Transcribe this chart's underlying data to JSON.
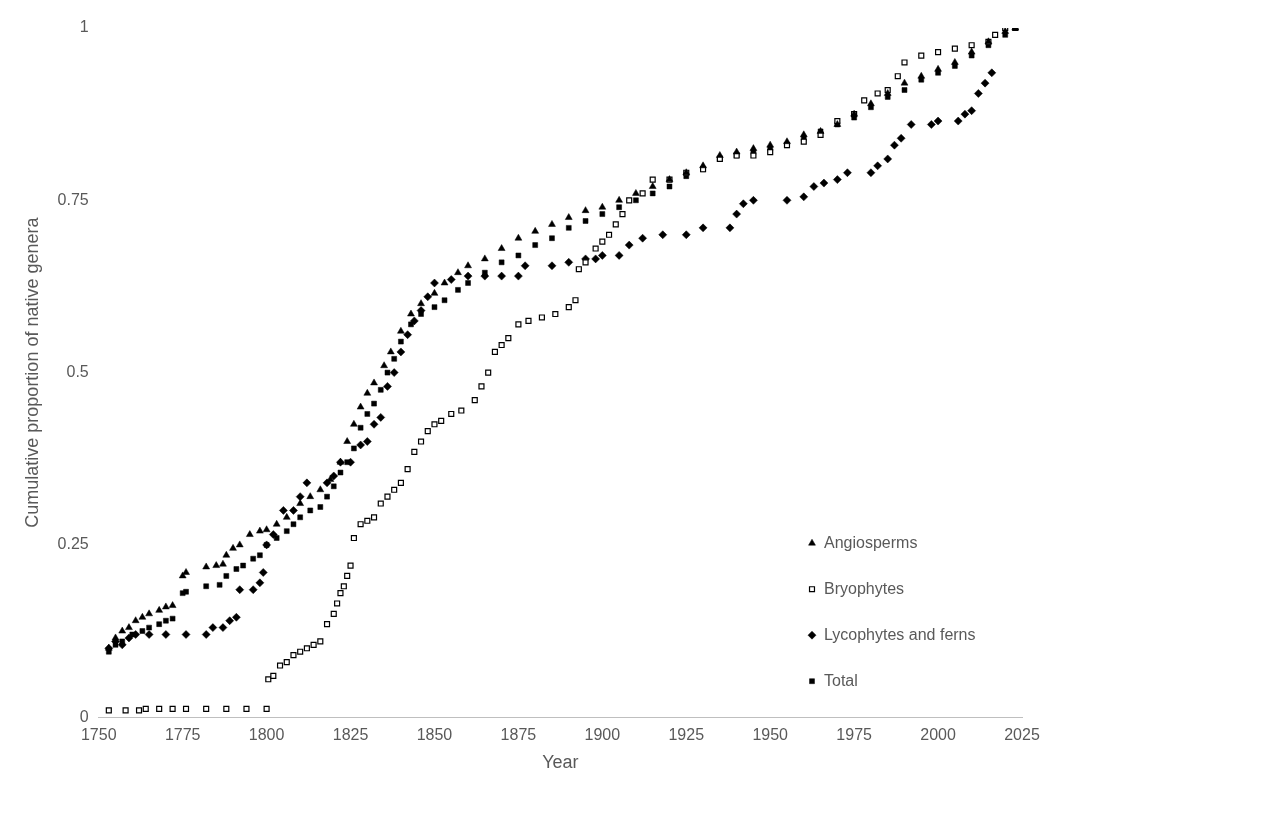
{
  "chart_data": {
    "type": "scatter",
    "xlabel": "Year",
    "ylabel": "Cumulative proportion of native genera",
    "xlim": [
      1750,
      2025
    ],
    "xticks": [
      1750,
      1775,
      1800,
      1825,
      1850,
      1875,
      1900,
      1925,
      1950,
      1975,
      2000,
      2025
    ],
    "ylim": [
      0,
      1
    ],
    "yticks": [
      0,
      0.25,
      0.5,
      0.75,
      1
    ],
    "grid": false,
    "legend": "bottom right",
    "series": [
      {
        "name": "Angiosperms",
        "color": "#000000",
        "marker": "triangle",
        "x": [
          1753,
          1755,
          1757,
          1759,
          1761,
          1763,
          1765,
          1768,
          1770,
          1772,
          1775,
          1776,
          1782,
          1785,
          1787,
          1788,
          1790,
          1792,
          1795,
          1798,
          1800,
          1803,
          1806,
          1810,
          1813,
          1816,
          1819,
          1822,
          1824,
          1826,
          1828,
          1830,
          1832,
          1835,
          1837,
          1840,
          1843,
          1846,
          1850,
          1853,
          1857,
          1860,
          1865,
          1870,
          1875,
          1880,
          1885,
          1890,
          1895,
          1900,
          1905,
          1910,
          1915,
          1920,
          1925,
          1930,
          1935,
          1940,
          1945,
          1950,
          1955,
          1960,
          1965,
          1970,
          1975,
          1980,
          1985,
          1990,
          1995,
          2000,
          2005,
          2010,
          2015,
          2020,
          2023
        ],
        "values": [
          0.1,
          0.115,
          0.125,
          0.13,
          0.14,
          0.145,
          0.15,
          0.155,
          0.16,
          0.162,
          0.205,
          0.21,
          0.218,
          0.22,
          0.222,
          0.235,
          0.245,
          0.25,
          0.265,
          0.27,
          0.272,
          0.28,
          0.29,
          0.31,
          0.32,
          0.33,
          0.345,
          0.37,
          0.4,
          0.425,
          0.45,
          0.47,
          0.485,
          0.51,
          0.53,
          0.56,
          0.585,
          0.6,
          0.615,
          0.63,
          0.645,
          0.655,
          0.665,
          0.68,
          0.695,
          0.705,
          0.715,
          0.725,
          0.735,
          0.74,
          0.75,
          0.76,
          0.77,
          0.78,
          0.79,
          0.8,
          0.815,
          0.82,
          0.825,
          0.83,
          0.835,
          0.845,
          0.85,
          0.86,
          0.875,
          0.89,
          0.905,
          0.92,
          0.93,
          0.94,
          0.95,
          0.965,
          0.98,
          0.995,
          1
        ]
      },
      {
        "name": "Bryophytes",
        "color": "#ffffff",
        "marker": "square",
        "x": [
          1753,
          1758,
          1762,
          1764,
          1768,
          1772,
          1776,
          1782,
          1788,
          1794,
          1800,
          1800.5,
          1802,
          1804,
          1806,
          1808,
          1810,
          1812,
          1814,
          1816,
          1818,
          1820,
          1821,
          1822,
          1823,
          1824,
          1825,
          1826,
          1828,
          1830,
          1832,
          1834,
          1836,
          1838,
          1840,
          1842,
          1844,
          1846,
          1848,
          1850,
          1852,
          1855,
          1858,
          1862,
          1864,
          1866,
          1868,
          1870,
          1872,
          1875,
          1878,
          1882,
          1886,
          1890,
          1892,
          1893,
          1895,
          1898,
          1900,
          1902,
          1904,
          1906,
          1908,
          1912,
          1915,
          1920,
          1925,
          1930,
          1935,
          1940,
          1945,
          1950,
          1955,
          1960,
          1965,
          1970,
          1975,
          1978,
          1982,
          1985,
          1988,
          1990,
          1995,
          2000,
          2005,
          2010,
          2015,
          2017,
          2020,
          2023
        ],
        "values": [
          0.01,
          0.01,
          0.01,
          0.012,
          0.012,
          0.012,
          0.012,
          0.012,
          0.012,
          0.012,
          0.012,
          0.055,
          0.06,
          0.075,
          0.08,
          0.09,
          0.095,
          0.1,
          0.105,
          0.11,
          0.135,
          0.15,
          0.165,
          0.18,
          0.19,
          0.205,
          0.22,
          0.26,
          0.28,
          0.285,
          0.29,
          0.31,
          0.32,
          0.33,
          0.34,
          0.36,
          0.385,
          0.4,
          0.415,
          0.425,
          0.43,
          0.44,
          0.445,
          0.46,
          0.48,
          0.5,
          0.53,
          0.54,
          0.55,
          0.57,
          0.575,
          0.58,
          0.585,
          0.595,
          0.605,
          0.65,
          0.66,
          0.68,
          0.69,
          0.7,
          0.715,
          0.73,
          0.75,
          0.76,
          0.78,
          0.78,
          0.79,
          0.795,
          0.81,
          0.815,
          0.815,
          0.82,
          0.83,
          0.835,
          0.845,
          0.865,
          0.875,
          0.895,
          0.905,
          0.91,
          0.93,
          0.95,
          0.96,
          0.965,
          0.97,
          0.975,
          0.98,
          0.99,
          1,
          1
        ]
      },
      {
        "name": "Lycophytes and ferns",
        "color": "#000000",
        "marker": "diamond",
        "x": [
          1753,
          1755,
          1757,
          1759,
          1761,
          1765,
          1770,
          1776,
          1782,
          1784,
          1787,
          1789,
          1791,
          1792,
          1796,
          1798,
          1799,
          1800,
          1802,
          1805,
          1808,
          1810,
          1812,
          1818,
          1820,
          1822,
          1825,
          1828,
          1830,
          1832,
          1834,
          1836,
          1838,
          1840,
          1842,
          1844,
          1846,
          1848,
          1850,
          1855,
          1860,
          1865,
          1870,
          1875,
          1877,
          1885,
          1890,
          1895,
          1898,
          1900,
          1905,
          1908,
          1912,
          1918,
          1925,
          1930,
          1938,
          1940,
          1942,
          1945,
          1955,
          1960,
          1963,
          1966,
          1970,
          1973,
          1980,
          1982,
          1985,
          1987,
          1989,
          1992,
          1998,
          2000,
          2006,
          2008,
          2010,
          2012,
          2014,
          2016
        ],
        "values": [
          0.1,
          0.11,
          0.105,
          0.115,
          0.12,
          0.12,
          0.12,
          0.12,
          0.12,
          0.13,
          0.13,
          0.14,
          0.145,
          0.185,
          0.185,
          0.195,
          0.21,
          0.25,
          0.265,
          0.3,
          0.3,
          0.32,
          0.34,
          0.34,
          0.35,
          0.37,
          0.37,
          0.395,
          0.4,
          0.425,
          0.435,
          0.48,
          0.5,
          0.53,
          0.555,
          0.575,
          0.59,
          0.61,
          0.63,
          0.635,
          0.64,
          0.64,
          0.64,
          0.64,
          0.655,
          0.655,
          0.66,
          0.665,
          0.665,
          0.67,
          0.67,
          0.685,
          0.695,
          0.7,
          0.7,
          0.71,
          0.71,
          0.73,
          0.745,
          0.75,
          0.75,
          0.755,
          0.77,
          0.775,
          0.78,
          0.79,
          0.79,
          0.8,
          0.81,
          0.83,
          0.84,
          0.86,
          0.86,
          0.865,
          0.865,
          0.875,
          0.88,
          0.905,
          0.92,
          0.935
        ]
      },
      {
        "name": "Total",
        "color": "#000000",
        "marker": "square",
        "x": [
          1753,
          1755,
          1757,
          1760,
          1763,
          1765,
          1768,
          1770,
          1772,
          1775,
          1776,
          1782,
          1786,
          1788,
          1791,
          1793,
          1796,
          1798,
          1800,
          1803,
          1806,
          1808,
          1810,
          1813,
          1816,
          1818,
          1820,
          1822,
          1824,
          1826,
          1828,
          1830,
          1832,
          1834,
          1836,
          1838,
          1840,
          1843,
          1846,
          1850,
          1853,
          1857,
          1860,
          1865,
          1870,
          1875,
          1880,
          1885,
          1890,
          1895,
          1900,
          1905,
          1910,
          1915,
          1920,
          1925,
          1930,
          1935,
          1940,
          1945,
          1950,
          1955,
          1960,
          1965,
          1970,
          1975,
          1980,
          1985,
          1990,
          1995,
          2000,
          2005,
          2010,
          2015,
          2020,
          2023
        ],
        "values": [
          0.095,
          0.105,
          0.11,
          0.12,
          0.125,
          0.13,
          0.135,
          0.14,
          0.143,
          0.18,
          0.182,
          0.19,
          0.192,
          0.205,
          0.215,
          0.22,
          0.23,
          0.235,
          0.25,
          0.26,
          0.27,
          0.28,
          0.29,
          0.3,
          0.305,
          0.32,
          0.335,
          0.355,
          0.37,
          0.39,
          0.42,
          0.44,
          0.455,
          0.475,
          0.5,
          0.52,
          0.545,
          0.57,
          0.585,
          0.595,
          0.605,
          0.62,
          0.63,
          0.645,
          0.66,
          0.67,
          0.685,
          0.695,
          0.71,
          0.72,
          0.73,
          0.74,
          0.75,
          0.76,
          0.77,
          0.785,
          0.795,
          0.81,
          0.815,
          0.82,
          0.825,
          0.83,
          0.84,
          0.85,
          0.86,
          0.87,
          0.885,
          0.9,
          0.91,
          0.925,
          0.935,
          0.945,
          0.96,
          0.975,
          0.99,
          1
        ]
      }
    ]
  }
}
